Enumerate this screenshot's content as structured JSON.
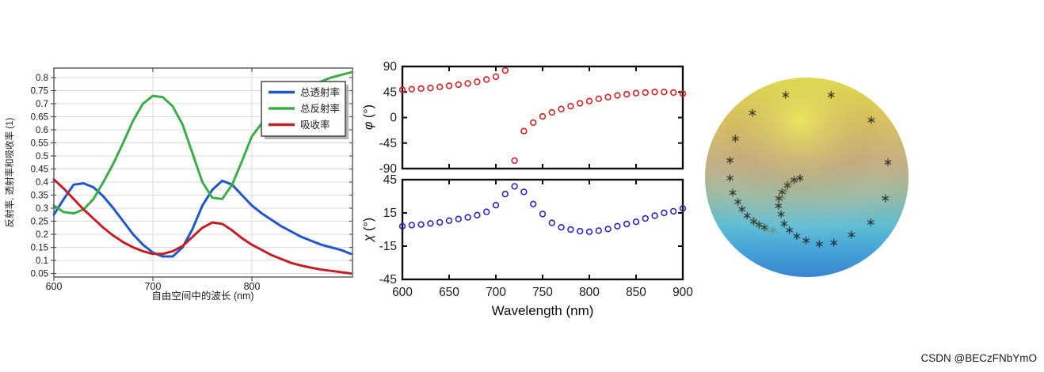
{
  "watermark": "CSDN @BECzFNbYmO",
  "colors": {
    "transmittance": "#2156c8",
    "reflectance": "#3aad49",
    "absorptance": "#c22026",
    "phi_marker": "#cf2424",
    "chi_marker": "#2929b8",
    "grid": "#dcdcdc",
    "left_axis": "#555555",
    "mat_axis": "#0d0d0d",
    "legend_border": "#3a3a3a",
    "legend_shadow": "#777777",
    "watermark_color": "#c9c9c9",
    "sphere_top": "#e4e73c",
    "sphere_upper": "#d9c158",
    "sphere_mid": "#c3ab7e",
    "sphere_mid2": "#9cb89f",
    "sphere_lower": "#5fbdd3",
    "sphere_low2": "#44a0d8",
    "sphere_bottom": "#3a86d0",
    "sphere_highlight": "#eff161",
    "sphere_marker": "#151515",
    "sphere_marker_dim": "#6f6f2f"
  },
  "chart_data": [
    {
      "type": "line",
      "title": "",
      "xlabel": "自由空间中的波长 (nm)",
      "ylabel": "反射率, 透射率和吸收率 (1)",
      "xlim": [
        600,
        902
      ],
      "ylim": [
        0.037,
        0.837
      ],
      "grid": true,
      "legend_position": "top-right",
      "xticks": [
        600,
        700,
        800
      ],
      "xtick_labels": [
        "600",
        "700",
        "800"
      ],
      "ytick_values": [
        0.05,
        0.1,
        0.15,
        0.2,
        0.25,
        0.3,
        0.35,
        0.4,
        0.45,
        0.5,
        0.55,
        0.6,
        0.65,
        0.7,
        0.75,
        0.8
      ],
      "ytick_labels": [
        "0.05",
        "0.1",
        "0.15",
        "0.2",
        "0.25",
        "0.3",
        "0.35",
        "0.4",
        "0.45",
        "0.5",
        "0.55",
        "0.6",
        "0.65",
        "0.7",
        "0.75",
        "0.8"
      ],
      "x": [
        600,
        610,
        620,
        630,
        640,
        650,
        660,
        670,
        680,
        690,
        700,
        710,
        720,
        730,
        740,
        750,
        760,
        770,
        780,
        790,
        800,
        810,
        820,
        830,
        840,
        850,
        860,
        870,
        880,
        890,
        900
      ],
      "series": [
        {
          "name": "总透射率",
          "color": "#2156c8",
          "values": [
            0.275,
            0.335,
            0.39,
            0.395,
            0.38,
            0.345,
            0.3,
            0.25,
            0.2,
            0.16,
            0.13,
            0.115,
            0.115,
            0.15,
            0.22,
            0.31,
            0.37,
            0.405,
            0.39,
            0.35,
            0.31,
            0.28,
            0.255,
            0.23,
            0.21,
            0.19,
            0.175,
            0.16,
            0.15,
            0.14,
            0.125
          ]
        },
        {
          "name": "总反射率",
          "color": "#3aad49",
          "values": [
            0.31,
            0.285,
            0.28,
            0.295,
            0.335,
            0.4,
            0.47,
            0.55,
            0.635,
            0.7,
            0.73,
            0.725,
            0.69,
            0.62,
            0.51,
            0.4,
            0.34,
            0.335,
            0.39,
            0.48,
            0.575,
            0.625,
            0.665,
            0.7,
            0.73,
            0.75,
            0.77,
            0.785,
            0.8,
            0.81,
            0.82
          ]
        },
        {
          "name": "吸收率",
          "color": "#c22026",
          "values": [
            0.41,
            0.375,
            0.335,
            0.295,
            0.26,
            0.225,
            0.195,
            0.17,
            0.15,
            0.135,
            0.125,
            0.125,
            0.135,
            0.155,
            0.19,
            0.225,
            0.245,
            0.24,
            0.215,
            0.185,
            0.16,
            0.14,
            0.12,
            0.105,
            0.09,
            0.08,
            0.072,
            0.065,
            0.06,
            0.055,
            0.05
          ]
        }
      ]
    },
    {
      "type": "scatter",
      "title": "",
      "ylabel_symbol": "φ",
      "ylabel_unit": " (°)",
      "xlim": [
        600,
        900
      ],
      "ylim": [
        -90,
        90
      ],
      "ytick_values": [
        90,
        45,
        0,
        -45,
        -90
      ],
      "ytick_labels": [
        "90",
        "45",
        "0",
        "-45",
        "-90"
      ],
      "xticks": [
        600,
        650,
        700,
        750,
        800,
        850,
        900
      ],
      "marker": "circle-open",
      "marker_color": "#cf2424",
      "x": [
        600,
        610,
        620,
        630,
        640,
        650,
        660,
        670,
        680,
        690,
        700,
        710,
        720,
        730,
        740,
        750,
        760,
        770,
        780,
        790,
        800,
        810,
        820,
        830,
        840,
        850,
        860,
        870,
        880,
        890,
        900
      ],
      "values": [
        49,
        50,
        51,
        52,
        54,
        56,
        58,
        60,
        63,
        67,
        72,
        83,
        -76,
        -24,
        -9,
        2,
        9,
        15,
        20,
        25,
        29,
        33,
        36,
        39,
        41,
        43,
        44,
        45,
        45,
        44,
        42
      ]
    },
    {
      "type": "scatter",
      "title": "",
      "xlabel": "Wavelength (nm)",
      "ylabel_symbol": "χ",
      "ylabel_unit": " (°)",
      "xlim": [
        600,
        900
      ],
      "ylim": [
        -45,
        45
      ],
      "ytick_values": [
        45,
        15,
        -15,
        -45
      ],
      "ytick_labels": [
        "45",
        "15",
        "-15",
        "-45"
      ],
      "xticks": [
        600,
        650,
        700,
        750,
        800,
        850,
        900
      ],
      "xtick_labels": [
        "600",
        "650",
        "700",
        "750",
        "800",
        "850",
        "900"
      ],
      "marker": "circle-open",
      "marker_color": "#2929b8",
      "x": [
        600,
        610,
        620,
        630,
        640,
        650,
        660,
        670,
        680,
        690,
        700,
        710,
        720,
        730,
        740,
        750,
        760,
        770,
        780,
        790,
        800,
        810,
        820,
        830,
        840,
        850,
        860,
        870,
        880,
        890,
        900
      ],
      "values": [
        3,
        4,
        4.5,
        5.5,
        6.5,
        8,
        9.5,
        11,
        13,
        16,
        22,
        32,
        39,
        34,
        23,
        14,
        6,
        2,
        0,
        -1.5,
        -2,
        -1,
        0.5,
        3,
        5,
        7,
        10,
        12.5,
        15,
        16.5,
        19
      ]
    },
    {
      "type": "scatter",
      "title": "poincare-sphere",
      "marker": "asterisk",
      "markers_pct": [
        [
          39.6,
          8.7
        ],
        [
          62.0,
          8.7
        ],
        [
          23.3,
          17.7
        ],
        [
          81.7,
          21.3
        ],
        [
          14.9,
          30.6
        ],
        [
          12.3,
          41.5
        ],
        [
          89.9,
          42.5
        ],
        [
          12.3,
          50.4
        ],
        [
          13.6,
          57.7
        ],
        [
          16.2,
          62.3
        ],
        [
          18.2,
          66.0
        ],
        [
          20.7,
          69.3
        ],
        [
          24.0,
          72.2
        ],
        [
          26.6,
          73.8
        ],
        [
          29.2,
          75.1
        ],
        [
          88.6,
          60.6
        ],
        [
          81.4,
          72.6
        ],
        [
          72.0,
          78.8
        ],
        [
          63.3,
          82.8
        ],
        [
          56.2,
          83.5
        ],
        [
          49.7,
          81.7
        ],
        [
          45.1,
          79.5
        ],
        [
          41.5,
          76.5
        ],
        [
          38.9,
          73.3
        ],
        [
          37.4,
          68.5
        ],
        [
          36.1,
          64.3
        ],
        [
          36.3,
          60.6
        ],
        [
          37.9,
          57.4
        ],
        [
          40.5,
          54.0
        ],
        [
          43.8,
          51.3
        ],
        [
          46.7,
          50.4
        ]
      ],
      "dim_markers_pct": [
        [
          41.2,
          53.2
        ],
        [
          43.5,
          51.9
        ],
        [
          39.4,
          56.6
        ],
        [
          38.0,
          60.0
        ],
        [
          23.5,
          71.5
        ],
        [
          26.4,
          74.1
        ],
        [
          30.0,
          75.9
        ],
        [
          33.4,
          76.6
        ]
      ]
    }
  ]
}
